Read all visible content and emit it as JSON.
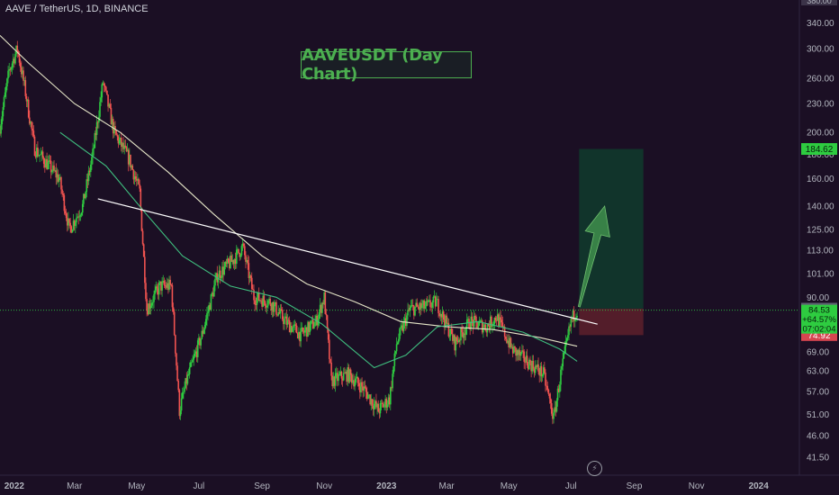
{
  "header": {
    "symbol": "AAVE / TetherUS, 1D, BINANCE"
  },
  "title_box": {
    "text": "AAVEUSDT (Day Chart)"
  },
  "colors": {
    "background": "#1b0f24",
    "up": "#26a69a",
    "up_bright": "#2ecc40",
    "down": "#ef5350",
    "ma_long": "#e6e6c8",
    "ma_short": "#3fbf7f",
    "trendline": "#ffffff",
    "target_zone": "#0f3b2d",
    "stop_zone": "#5a1f2b",
    "arrow": "#3d8a4a"
  },
  "chart_data": {
    "type": "candlestick",
    "y_scale": "log",
    "ylim": [
      38,
      380
    ],
    "x_range": [
      "2021-12-18",
      "2024-02-10"
    ],
    "y_ticks": [
      "340.00",
      "300.00",
      "260.00",
      "230.00",
      "200.00",
      "180.00",
      "160.00",
      "140.00",
      "125.00",
      "113.00",
      "101.00",
      "90.00",
      "80.00",
      "74.00",
      "69.00",
      "63.00",
      "57.00",
      "51.00",
      "46.00",
      "41.50"
    ],
    "y_tick_values": [
      340,
      300,
      260,
      230,
      200,
      180,
      160,
      140,
      125,
      113,
      101,
      90,
      80,
      74,
      69,
      63,
      57,
      51,
      46,
      41.5
    ],
    "x_ticks": [
      {
        "label": "2022",
        "date": "2022-01-01",
        "bold": true
      },
      {
        "label": "Mar",
        "date": "2022-03-01",
        "bold": false
      },
      {
        "label": "May",
        "date": "2022-05-01",
        "bold": false
      },
      {
        "label": "Jul",
        "date": "2022-07-01",
        "bold": false
      },
      {
        "label": "Sep",
        "date": "2022-09-01",
        "bold": false
      },
      {
        "label": "Nov",
        "date": "2022-11-01",
        "bold": false
      },
      {
        "label": "2023",
        "date": "2023-01-01",
        "bold": true
      },
      {
        "label": "Mar",
        "date": "2023-03-01",
        "bold": false
      },
      {
        "label": "May",
        "date": "2023-05-01",
        "bold": false
      },
      {
        "label": "Jul",
        "date": "2023-07-01",
        "bold": false
      },
      {
        "label": "Sep",
        "date": "2023-09-01",
        "bold": false
      },
      {
        "label": "Nov",
        "date": "2023-11-01",
        "bold": false
      },
      {
        "label": "2024",
        "date": "2024-01-01",
        "bold": true
      }
    ],
    "price_path": [
      [
        "2021-12-18",
        200
      ],
      [
        "2021-12-28",
        270
      ],
      [
        "2022-01-05",
        300
      ],
      [
        "2022-01-12",
        250
      ],
      [
        "2022-01-22",
        185
      ],
      [
        "2022-02-05",
        170
      ],
      [
        "2022-02-15",
        160
      ],
      [
        "2022-02-25",
        125
      ],
      [
        "2022-03-10",
        140
      ],
      [
        "2022-03-20",
        180
      ],
      [
        "2022-03-30",
        255
      ],
      [
        "2022-04-10",
        200
      ],
      [
        "2022-04-25",
        175
      ],
      [
        "2022-05-05",
        150
      ],
      [
        "2022-05-12",
        85
      ],
      [
        "2022-05-25",
        95
      ],
      [
        "2022-06-05",
        95
      ],
      [
        "2022-06-13",
        52
      ],
      [
        "2022-06-20",
        60
      ],
      [
        "2022-07-05",
        75
      ],
      [
        "2022-07-20",
        100
      ],
      [
        "2022-08-05",
        108
      ],
      [
        "2022-08-14",
        115
      ],
      [
        "2022-08-25",
        90
      ],
      [
        "2022-09-10",
        88
      ],
      [
        "2022-09-25",
        80
      ],
      [
        "2022-10-10",
        75
      ],
      [
        "2022-10-25",
        80
      ],
      [
        "2022-11-02",
        90
      ],
      [
        "2022-11-09",
        60
      ],
      [
        "2022-11-25",
        62
      ],
      [
        "2022-12-10",
        58
      ],
      [
        "2022-12-25",
        52
      ],
      [
        "2023-01-05",
        55
      ],
      [
        "2023-01-12",
        72
      ],
      [
        "2023-01-25",
        85
      ],
      [
        "2023-02-10",
        86
      ],
      [
        "2023-02-20",
        88
      ],
      [
        "2023-03-10",
        72
      ],
      [
        "2023-03-25",
        80
      ],
      [
        "2023-04-10",
        78
      ],
      [
        "2023-04-20",
        82
      ],
      [
        "2023-05-05",
        70
      ],
      [
        "2023-05-20",
        66
      ],
      [
        "2023-06-05",
        62
      ],
      [
        "2023-06-15",
        50
      ],
      [
        "2023-06-22",
        62
      ],
      [
        "2023-07-02",
        80
      ],
      [
        "2023-07-07",
        84.53
      ]
    ],
    "ma_long": [
      [
        "2021-12-18",
        320
      ],
      [
        "2022-01-15",
        280
      ],
      [
        "2022-03-01",
        230
      ],
      [
        "2022-04-15",
        200
      ],
      [
        "2022-06-01",
        165
      ],
      [
        "2022-07-15",
        135
      ],
      [
        "2022-09-01",
        110
      ],
      [
        "2022-10-15",
        96
      ],
      [
        "2022-12-01",
        88
      ],
      [
        "2023-01-15",
        80
      ],
      [
        "2023-03-01",
        78
      ],
      [
        "2023-04-15",
        77
      ],
      [
        "2023-06-01",
        74
      ],
      [
        "2023-07-07",
        71
      ]
    ],
    "ma_short": [
      [
        "2022-02-15",
        200
      ],
      [
        "2022-04-01",
        170
      ],
      [
        "2022-05-10",
        135
      ],
      [
        "2022-06-15",
        110
      ],
      [
        "2022-08-01",
        95
      ],
      [
        "2022-09-15",
        90
      ],
      [
        "2022-10-30",
        79
      ],
      [
        "2022-12-20",
        64
      ],
      [
        "2023-01-20",
        68
      ],
      [
        "2023-02-20",
        78
      ],
      [
        "2023-04-01",
        80
      ],
      [
        "2023-05-15",
        76
      ],
      [
        "2023-06-20",
        70
      ],
      [
        "2023-07-07",
        66
      ]
    ],
    "trendline": [
      [
        "2022-03-24",
        145
      ],
      [
        "2023-07-27",
        79
      ]
    ],
    "current_price": {
      "value": 84.53,
      "label": "84.53",
      "change": "+64.57%",
      "countdown": "07:02:04"
    },
    "target_tag": {
      "value": 184.62,
      "label": "184.62"
    },
    "entry_tag": {
      "value": 85.16,
      "label": "85.16"
    },
    "stop_tag": {
      "value": 74.92,
      "label": "74.92"
    },
    "top_cut_tag": "380.00",
    "position": {
      "start": "2023-07-09",
      "end": "2023-09-10",
      "entry": 85.16,
      "target": 184.62,
      "stop": 74.92
    },
    "arrow": {
      "from": [
        "2023-07-09",
        86
      ],
      "to": [
        "2023-08-03",
        140
      ]
    }
  }
}
